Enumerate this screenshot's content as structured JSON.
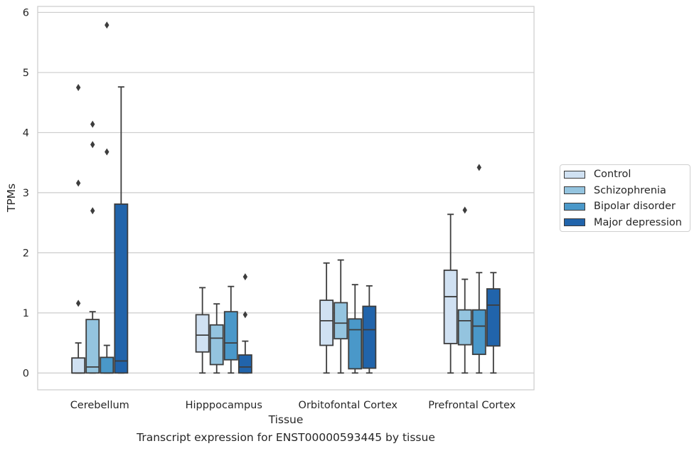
{
  "chart_data": {
    "type": "box",
    "xlabel": "Tissue",
    "ylabel": "TPMs",
    "ylim": [
      -0.28,
      6.1
    ],
    "yticks": [
      0,
      1,
      2,
      3,
      4,
      5,
      6
    ],
    "grid": "horizontal",
    "legend_placement": "right, outside plot",
    "categories": [
      "Cerebellum",
      "Hipppocampus",
      "Orbitofontal Cortex",
      "Prefrontal Cortex"
    ],
    "series": [
      {
        "name": "Control",
        "color": "#d0e1f2",
        "boxes": [
          {
            "whislo": 0,
            "q1": 0,
            "med": 0,
            "q3": 0.25,
            "whishi": 0.5,
            "fliers": [
              1.16,
              3.16,
              4.75
            ]
          },
          {
            "whislo": 0,
            "q1": 0.35,
            "med": 0.63,
            "q3": 0.97,
            "whishi": 1.42,
            "fliers": []
          },
          {
            "whislo": 0,
            "q1": 0.46,
            "med": 0.87,
            "q3": 1.21,
            "whishi": 1.83,
            "fliers": []
          },
          {
            "whislo": 0,
            "q1": 0.49,
            "med": 1.27,
            "q3": 1.71,
            "whishi": 2.64,
            "fliers": []
          }
        ]
      },
      {
        "name": "Schizophrenia",
        "color": "#94c4df",
        "boxes": [
          {
            "whislo": 0,
            "q1": 0,
            "med": 0.1,
            "q3": 0.89,
            "whishi": 1.02,
            "fliers": [
              2.7,
              3.8,
              4.14
            ]
          },
          {
            "whislo": 0,
            "q1": 0.14,
            "med": 0.58,
            "q3": 0.8,
            "whishi": 1.15,
            "fliers": []
          },
          {
            "whislo": 0,
            "q1": 0.57,
            "med": 0.83,
            "q3": 1.17,
            "whishi": 1.88,
            "fliers": []
          },
          {
            "whislo": 0,
            "q1": 0.47,
            "med": 0.87,
            "q3": 1.05,
            "whishi": 1.56,
            "fliers": [
              2.71
            ]
          }
        ]
      },
      {
        "name": "Bipolar disorder",
        "color": "#4a98c9",
        "boxes": [
          {
            "whislo": 0,
            "q1": 0,
            "med": 0,
            "q3": 0.26,
            "whishi": 0.46,
            "fliers": [
              3.68,
              5.79
            ]
          },
          {
            "whislo": 0,
            "q1": 0.22,
            "med": 0.5,
            "q3": 1.02,
            "whishi": 1.44,
            "fliers": []
          },
          {
            "whislo": 0,
            "q1": 0.07,
            "med": 0.72,
            "q3": 0.9,
            "whishi": 1.47,
            "fliers": []
          },
          {
            "whislo": 0,
            "q1": 0.31,
            "med": 0.78,
            "q3": 1.05,
            "whishi": 1.67,
            "fliers": [
              3.42
            ]
          }
        ]
      },
      {
        "name": "Major depression",
        "color": "#2164ab",
        "boxes": [
          {
            "whislo": 0,
            "q1": 0,
            "med": 0.2,
            "q3": 2.81,
            "whishi": 4.76,
            "fliers": []
          },
          {
            "whislo": 0,
            "q1": 0,
            "med": 0.1,
            "q3": 0.3,
            "whishi": 0.53,
            "fliers": [
              0.97,
              1.6
            ]
          },
          {
            "whislo": 0,
            "q1": 0.08,
            "med": 0.72,
            "q3": 1.11,
            "whishi": 1.45,
            "fliers": []
          },
          {
            "whislo": 0,
            "q1": 0.45,
            "med": 1.13,
            "q3": 1.4,
            "whishi": 1.67,
            "fliers": []
          }
        ]
      }
    ]
  },
  "caption": "Transcript expression for ENST00000593445 by tissue"
}
